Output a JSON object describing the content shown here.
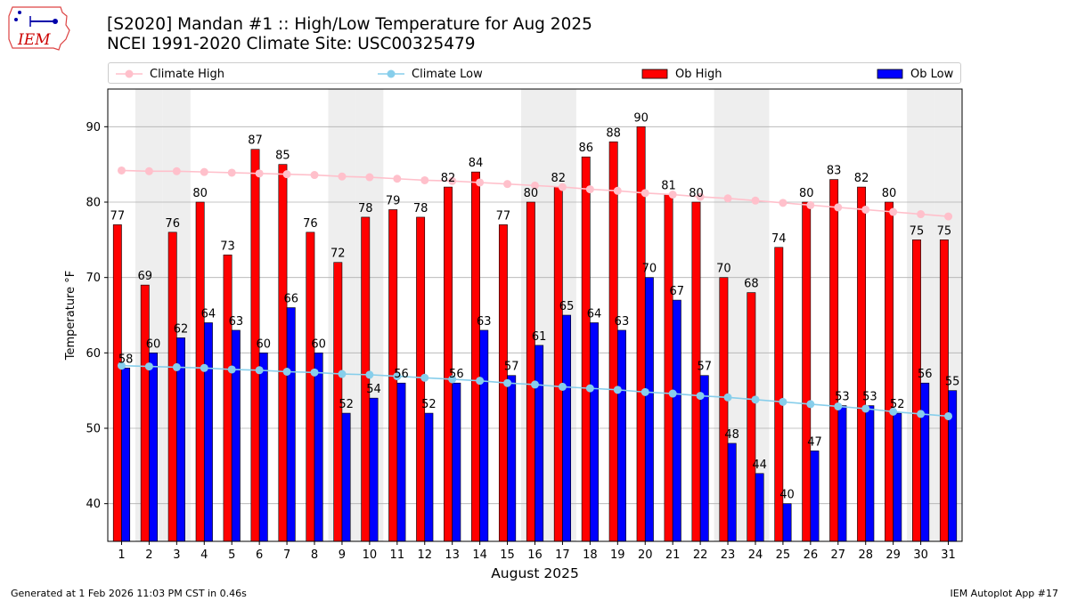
{
  "header": {
    "title_line1": "[S2020] Mandan #1 :: High/Low Temperature for Aug 2025",
    "title_line2": "NCEI 1991-2020 Climate Site: USC00325479"
  },
  "logo": {
    "text": "IEM"
  },
  "footer": {
    "left": "Generated at 1 Feb 2026 11:03 PM CST in 0.46s",
    "right": "IEM Autoplot App #17"
  },
  "colors": {
    "ob_high": "#ff0000",
    "ob_low": "#0000ff",
    "climate_high": "#ffc0cb",
    "climate_low": "#87ceeb",
    "weekend_shade": "#eeeeee",
    "grid": "#b0b0b0"
  },
  "chart_data": {
    "type": "bar",
    "xlabel": "August 2025",
    "ylabel": "Temperature °F",
    "ylim": [
      35,
      95
    ],
    "yticks": [
      40,
      50,
      60,
      70,
      80,
      90
    ],
    "grid": true,
    "legend": "top",
    "categories": [
      "1",
      "2",
      "3",
      "4",
      "5",
      "6",
      "7",
      "8",
      "9",
      "10",
      "11",
      "12",
      "13",
      "14",
      "15",
      "16",
      "17",
      "18",
      "19",
      "20",
      "21",
      "22",
      "23",
      "24",
      "25",
      "26",
      "27",
      "28",
      "29",
      "30",
      "31"
    ],
    "shaded_days": [
      2,
      3,
      9,
      10,
      16,
      17,
      23,
      24,
      30,
      31
    ],
    "series": [
      {
        "name": "Ob High",
        "kind": "bar",
        "values": [
          77,
          69,
          76,
          80,
          73,
          87,
          85,
          76,
          72,
          78,
          79,
          78,
          82,
          84,
          77,
          80,
          82,
          86,
          88,
          90,
          81,
          80,
          70,
          68,
          74,
          80,
          83,
          82,
          80,
          75,
          75
        ]
      },
      {
        "name": "Ob Low",
        "kind": "bar",
        "values": [
          58,
          60,
          62,
          64,
          63,
          60,
          66,
          60,
          52,
          54,
          56,
          52,
          56,
          63,
          57,
          61,
          65,
          64,
          63,
          70,
          67,
          57,
          48,
          44,
          40,
          47,
          53,
          53,
          52,
          56,
          55
        ]
      },
      {
        "name": "Climate High",
        "kind": "line",
        "values": [
          84.2,
          84.1,
          84.1,
          84.0,
          83.9,
          83.8,
          83.7,
          83.6,
          83.4,
          83.3,
          83.1,
          82.9,
          82.8,
          82.6,
          82.4,
          82.2,
          82.0,
          81.7,
          81.5,
          81.2,
          81.0,
          80.7,
          80.5,
          80.2,
          79.9,
          79.6,
          79.3,
          79.0,
          78.7,
          78.4,
          78.1
        ]
      },
      {
        "name": "Climate Low",
        "kind": "line",
        "values": [
          58.3,
          58.2,
          58.1,
          58.0,
          57.8,
          57.7,
          57.5,
          57.4,
          57.2,
          57.1,
          56.9,
          56.7,
          56.5,
          56.3,
          56.0,
          55.8,
          55.5,
          55.3,
          55.1,
          54.8,
          54.6,
          54.3,
          54.1,
          53.8,
          53.5,
          53.2,
          52.9,
          52.6,
          52.2,
          51.9,
          51.6
        ]
      }
    ]
  }
}
